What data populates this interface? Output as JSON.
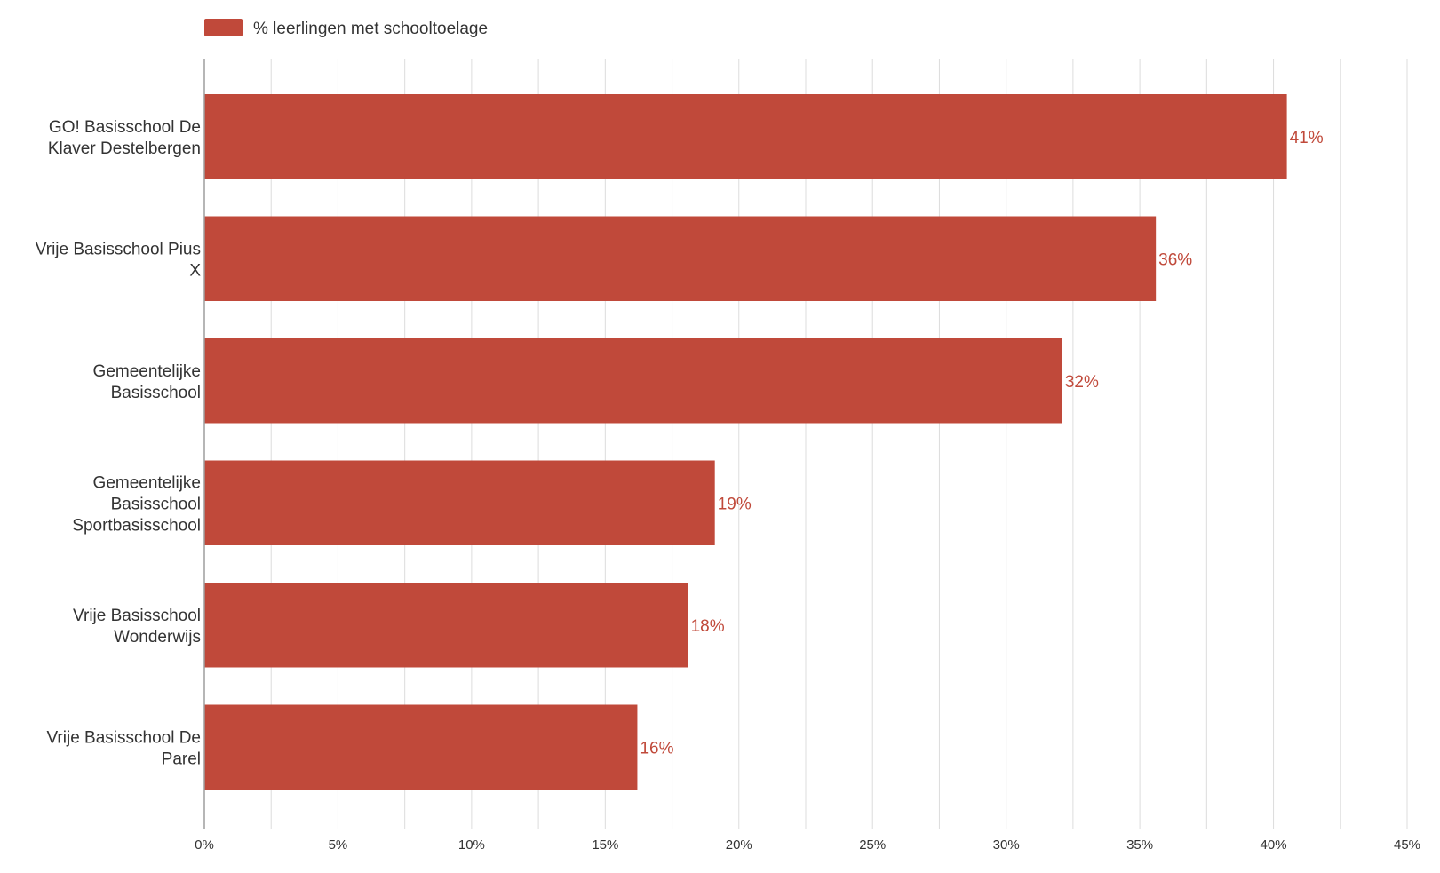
{
  "chart_data": {
    "type": "bar",
    "orientation": "horizontal",
    "categories": [
      [
        "GO! Basisschool De",
        "Klaver Destelbergen"
      ],
      [
        "Vrije Basisschool Pius",
        "X"
      ],
      [
        "Gemeentelijke",
        "Basisschool"
      ],
      [
        "Gemeentelijke",
        "Basisschool",
        "Sportbasisschool"
      ],
      [
        "Vrije Basisschool",
        "Wonderwijs"
      ],
      [
        "Vrije Basisschool De",
        "Parel"
      ]
    ],
    "series": [
      {
        "name": "% leerlingen met schooltoelage",
        "color": "#c0493a",
        "values": [
          40.5,
          35.6,
          32.1,
          19.1,
          18.1,
          16.2
        ],
        "labels": [
          "41%",
          "36%",
          "32%",
          "19%",
          "18%",
          "16%"
        ]
      }
    ],
    "xlim": [
      0,
      45
    ],
    "xticks": [
      0,
      5,
      10,
      15,
      20,
      25,
      30,
      35,
      40,
      45
    ],
    "xtick_labels": [
      "0%",
      "5%",
      "10%",
      "15%",
      "20%",
      "25%",
      "30%",
      "35%",
      "40%",
      "45%"
    ],
    "minor_gridlines": true,
    "grid": true,
    "legend": "top-left",
    "title": "",
    "xlabel": "",
    "ylabel": ""
  }
}
